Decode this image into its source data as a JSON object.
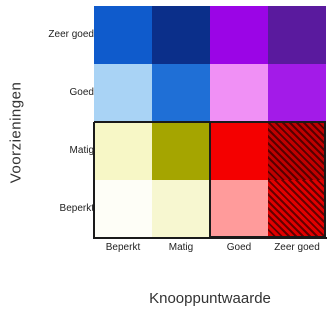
{
  "y_axis_title": "Voorzieningen",
  "x_axis_title": "Knooppuntwaarde",
  "rows": [
    {
      "label": "Zeer goed"
    },
    {
      "label": "Goed"
    },
    {
      "label": "Matig"
    },
    {
      "label": "Beperkt"
    }
  ],
  "columns": [
    {
      "label": "Beperkt"
    },
    {
      "label": "Matig"
    },
    {
      "label": "Goed"
    },
    {
      "label": "Zeer goed"
    }
  ],
  "cells": [
    [
      {
        "color": "#0f5bcc"
      },
      {
        "color": "#0b2f8a"
      },
      {
        "color": "#9b05e6"
      },
      {
        "color": "#5a1a9e"
      }
    ],
    [
      {
        "color": "#a9d3f5"
      },
      {
        "color": "#1f6fd6"
      },
      {
        "color": "#f090f5"
      },
      {
        "color": "#a31be8"
      }
    ],
    [
      {
        "color": "#f7f7c6"
      },
      {
        "color": "#a5a500"
      },
      {
        "color": "#f40000"
      },
      {
        "color": "#c00000",
        "hatched": true
      }
    ],
    [
      {
        "color": "#fefef7"
      },
      {
        "color": "#f7f7d0"
      },
      {
        "color": "#ff9b9b"
      },
      {
        "color": "#e00000",
        "hatched": true
      }
    ]
  ],
  "border_color": "#1a1a1a"
}
